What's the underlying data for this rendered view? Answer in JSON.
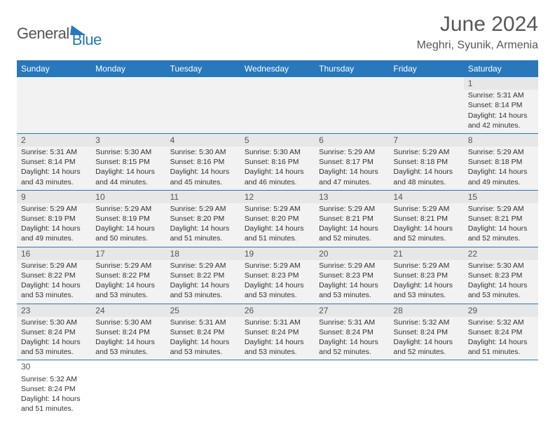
{
  "logo": {
    "part1": "General",
    "part2": "Blue"
  },
  "title": "June 2024",
  "location": "Meghri, Syunik, Armenia",
  "columns": [
    "Sunday",
    "Monday",
    "Tuesday",
    "Wednesday",
    "Thursday",
    "Friday",
    "Saturday"
  ],
  "colors": {
    "header_bg": "#2878bb",
    "header_text": "#ffffff",
    "logo_gray": "#555555",
    "logo_blue": "#2878bb",
    "title_color": "#575757",
    "row_shade": "#f2f2f2",
    "daynum_shade": "#e7e7e7",
    "border": "#2878bb"
  },
  "font": {
    "family": "Arial",
    "title_size": 30,
    "location_size": 16,
    "header_size": 12,
    "cell_size": 10.5,
    "daynum_size": 12
  },
  "weeks": [
    [
      null,
      null,
      null,
      null,
      null,
      null,
      {
        "n": "1",
        "sunrise": "5:31 AM",
        "sunset": "8:14 PM",
        "daylight": "14 hours and 42 minutes."
      }
    ],
    [
      {
        "n": "2",
        "sunrise": "5:31 AM",
        "sunset": "8:14 PM",
        "daylight": "14 hours and 43 minutes."
      },
      {
        "n": "3",
        "sunrise": "5:30 AM",
        "sunset": "8:15 PM",
        "daylight": "14 hours and 44 minutes."
      },
      {
        "n": "4",
        "sunrise": "5:30 AM",
        "sunset": "8:16 PM",
        "daylight": "14 hours and 45 minutes."
      },
      {
        "n": "5",
        "sunrise": "5:30 AM",
        "sunset": "8:16 PM",
        "daylight": "14 hours and 46 minutes."
      },
      {
        "n": "6",
        "sunrise": "5:29 AM",
        "sunset": "8:17 PM",
        "daylight": "14 hours and 47 minutes."
      },
      {
        "n": "7",
        "sunrise": "5:29 AM",
        "sunset": "8:18 PM",
        "daylight": "14 hours and 48 minutes."
      },
      {
        "n": "8",
        "sunrise": "5:29 AM",
        "sunset": "8:18 PM",
        "daylight": "14 hours and 49 minutes."
      }
    ],
    [
      {
        "n": "9",
        "sunrise": "5:29 AM",
        "sunset": "8:19 PM",
        "daylight": "14 hours and 49 minutes."
      },
      {
        "n": "10",
        "sunrise": "5:29 AM",
        "sunset": "8:19 PM",
        "daylight": "14 hours and 50 minutes."
      },
      {
        "n": "11",
        "sunrise": "5:29 AM",
        "sunset": "8:20 PM",
        "daylight": "14 hours and 51 minutes."
      },
      {
        "n": "12",
        "sunrise": "5:29 AM",
        "sunset": "8:20 PM",
        "daylight": "14 hours and 51 minutes."
      },
      {
        "n": "13",
        "sunrise": "5:29 AM",
        "sunset": "8:21 PM",
        "daylight": "14 hours and 52 minutes."
      },
      {
        "n": "14",
        "sunrise": "5:29 AM",
        "sunset": "8:21 PM",
        "daylight": "14 hours and 52 minutes."
      },
      {
        "n": "15",
        "sunrise": "5:29 AM",
        "sunset": "8:21 PM",
        "daylight": "14 hours and 52 minutes."
      }
    ],
    [
      {
        "n": "16",
        "sunrise": "5:29 AM",
        "sunset": "8:22 PM",
        "daylight": "14 hours and 53 minutes."
      },
      {
        "n": "17",
        "sunrise": "5:29 AM",
        "sunset": "8:22 PM",
        "daylight": "14 hours and 53 minutes."
      },
      {
        "n": "18",
        "sunrise": "5:29 AM",
        "sunset": "8:22 PM",
        "daylight": "14 hours and 53 minutes."
      },
      {
        "n": "19",
        "sunrise": "5:29 AM",
        "sunset": "8:23 PM",
        "daylight": "14 hours and 53 minutes."
      },
      {
        "n": "20",
        "sunrise": "5:29 AM",
        "sunset": "8:23 PM",
        "daylight": "14 hours and 53 minutes."
      },
      {
        "n": "21",
        "sunrise": "5:29 AM",
        "sunset": "8:23 PM",
        "daylight": "14 hours and 53 minutes."
      },
      {
        "n": "22",
        "sunrise": "5:30 AM",
        "sunset": "8:23 PM",
        "daylight": "14 hours and 53 minutes."
      }
    ],
    [
      {
        "n": "23",
        "sunrise": "5:30 AM",
        "sunset": "8:24 PM",
        "daylight": "14 hours and 53 minutes."
      },
      {
        "n": "24",
        "sunrise": "5:30 AM",
        "sunset": "8:24 PM",
        "daylight": "14 hours and 53 minutes."
      },
      {
        "n": "25",
        "sunrise": "5:31 AM",
        "sunset": "8:24 PM",
        "daylight": "14 hours and 53 minutes."
      },
      {
        "n": "26",
        "sunrise": "5:31 AM",
        "sunset": "8:24 PM",
        "daylight": "14 hours and 53 minutes."
      },
      {
        "n": "27",
        "sunrise": "5:31 AM",
        "sunset": "8:24 PM",
        "daylight": "14 hours and 52 minutes."
      },
      {
        "n": "28",
        "sunrise": "5:32 AM",
        "sunset": "8:24 PM",
        "daylight": "14 hours and 52 minutes."
      },
      {
        "n": "29",
        "sunrise": "5:32 AM",
        "sunset": "8:24 PM",
        "daylight": "14 hours and 51 minutes."
      }
    ],
    [
      {
        "n": "30",
        "sunrise": "5:32 AM",
        "sunset": "8:24 PM",
        "daylight": "14 hours and 51 minutes."
      },
      null,
      null,
      null,
      null,
      null,
      null
    ]
  ]
}
